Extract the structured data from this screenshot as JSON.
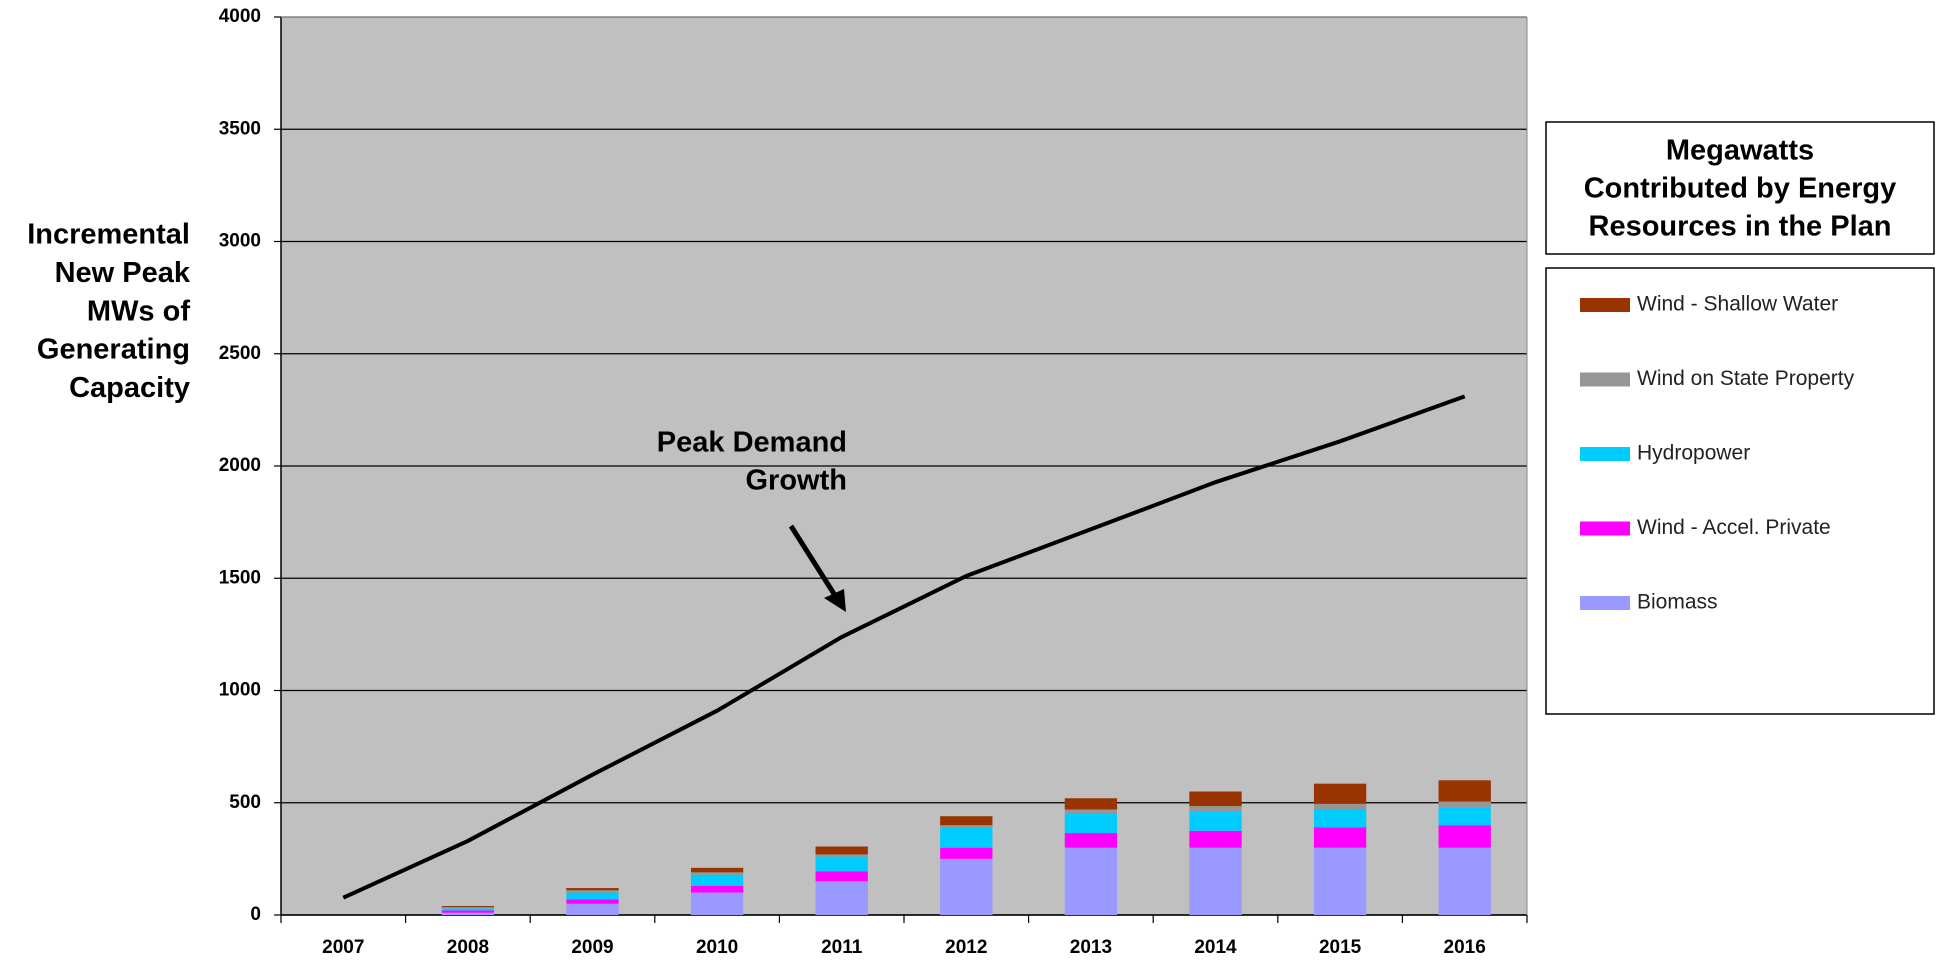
{
  "chart_data": {
    "type": "bar",
    "stacked": true,
    "y_label": [
      "Incremental",
      "New Peak",
      "MWs of",
      "Generating",
      "Capacity"
    ],
    "legend_title": [
      "Megawatts",
      "Contributed by Energy",
      "Resources in the Plan"
    ],
    "annotation": [
      "Peak Demand",
      "Growth"
    ],
    "categories": [
      "2007",
      "2008",
      "2009",
      "2010",
      "2011",
      "2012",
      "2013",
      "2014",
      "2015",
      "2016"
    ],
    "series": [
      {
        "name": "Biomass",
        "color": "#9999ff",
        "values": [
          0,
          10,
          50,
          100,
          150,
          250,
          300,
          300,
          300,
          300
        ]
      },
      {
        "name": "Wind - Accel. Private",
        "color": "#ff00ff",
        "values": [
          0,
          10,
          20,
          30,
          45,
          50,
          65,
          75,
          90,
          100
        ]
      },
      {
        "name": "Hydropower",
        "color": "#00ccff",
        "values": [
          0,
          10,
          30,
          50,
          65,
          90,
          85,
          85,
          80,
          80
        ]
      },
      {
        "name": "Wind on State Property",
        "color": "#969696",
        "values": [
          0,
          5,
          10,
          10,
          10,
          10,
          20,
          25,
          25,
          25
        ]
      },
      {
        "name": "Wind - Shallow Water",
        "color": "#993300",
        "values": [
          0,
          5,
          10,
          20,
          35,
          40,
          50,
          65,
          90,
          95
        ]
      }
    ],
    "line": {
      "color": "#000000",
      "values": [
        77,
        330,
        625,
        910,
        1238,
        1510,
        1718,
        1928,
        2110,
        2310
      ]
    },
    "ylim": [
      0,
      4000
    ],
    "yticks": [
      0,
      500,
      1000,
      1500,
      2000,
      2500,
      3000,
      3500,
      4000
    ],
    "grid": true,
    "legend_position": "right"
  }
}
